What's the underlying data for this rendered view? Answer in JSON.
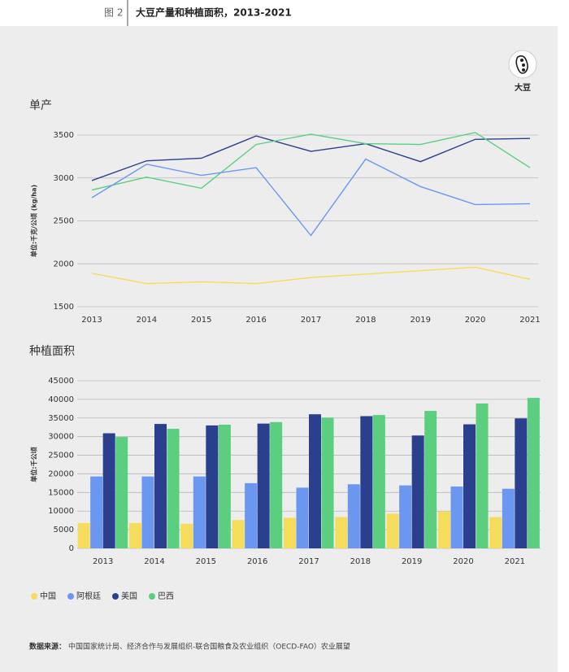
{
  "header": {
    "figure_label": "图 2",
    "title": "大豆产量和种植面积，2013-2021"
  },
  "icon_label": "大豆",
  "chart_data": [
    {
      "type": "line",
      "title": "单产",
      "y_label": "单位:千克/公顷 (kg/ha)",
      "categories": [
        "2013",
        "2014",
        "2015",
        "2016",
        "2017",
        "2018",
        "2019",
        "2020",
        "2021"
      ],
      "series": [
        {
          "color": "#2b3f8f",
          "values": [
            2970,
            3200,
            3230,
            3490,
            3310,
            3400,
            3190,
            3450,
            3460
          ]
        },
        {
          "color": "#5cce80",
          "values": [
            2860,
            3010,
            2880,
            3390,
            3510,
            3400,
            3390,
            3530,
            3120
          ]
        },
        {
          "color": "#6b97f0",
          "values": [
            2770,
            3160,
            3030,
            3120,
            2330,
            3220,
            2900,
            2690,
            2700
          ]
        },
        {
          "color": "#f5dc5a",
          "values": [
            1890,
            1770,
            1790,
            1770,
            1840,
            1880,
            1920,
            1960,
            1820
          ]
        }
      ],
      "ylim": [
        1500,
        3500
      ],
      "yticks": [
        1500,
        2000,
        2500,
        3000,
        3500
      ],
      "grid": true
    },
    {
      "type": "bar",
      "title": "种植面积",
      "y_label": "单位:千公顷",
      "categories": [
        "2013",
        "2014",
        "2015",
        "2016",
        "2017",
        "2018",
        "2019",
        "2020",
        "2021"
      ],
      "series": [
        {
          "name": "中国",
          "color": "#f5dc5a",
          "values": [
            6800,
            6800,
            6600,
            7600,
            8200,
            8400,
            9300,
            9900,
            8400
          ]
        },
        {
          "name": "阿根廷",
          "color": "#6b97f0",
          "values": [
            19300,
            19300,
            19300,
            17500,
            16300,
            17200,
            16900,
            16600,
            16000
          ]
        },
        {
          "name": "美国",
          "color": "#2b3f8f",
          "values": [
            30900,
            33400,
            33000,
            33500,
            36000,
            35500,
            30300,
            33300,
            34900
          ]
        },
        {
          "name": "巴西",
          "color": "#5cce80",
          "values": [
            29900,
            32100,
            33200,
            33900,
            35100,
            35800,
            36900,
            38900,
            40400
          ]
        }
      ],
      "ylim": [
        0,
        45000
      ],
      "yticks": [
        0,
        5000,
        10000,
        15000,
        20000,
        25000,
        30000,
        35000,
        40000,
        45000
      ],
      "grid": true
    }
  ],
  "note": {
    "label": "数据来源：",
    "text": "中国国家统计局、经济合作与发展组织-联合国粮食及农业组织（OECD-FAO）农业展望"
  }
}
